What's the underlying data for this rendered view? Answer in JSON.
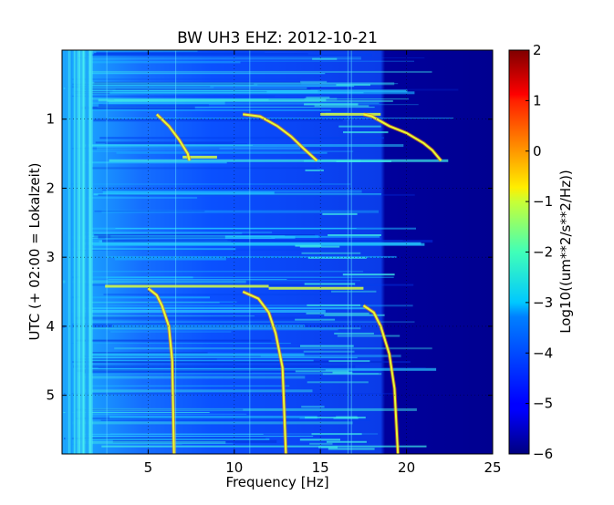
{
  "chart_data": {
    "type": "heatmap",
    "title": "BW UH3 EHZ: 2012-10-21",
    "xlabel": "Frequency [Hz]",
    "ylabel": "UTC (+ 02:00 = Lokalzeit)",
    "xlim": [
      0,
      25
    ],
    "ylim": [
      5.85,
      0
    ],
    "xticks": [
      5,
      10,
      15,
      20,
      25
    ],
    "yticks": [
      1,
      2,
      3,
      4,
      5
    ],
    "grid": true,
    "colorbar": {
      "label": "Log10((um**2/s**2/Hz))",
      "range": [
        -6,
        2
      ],
      "ticks": [
        -6,
        -5,
        -4,
        -3,
        -2,
        -1,
        0,
        1,
        2
      ],
      "colormap": "jet"
    },
    "tracks": [
      {
        "x": [
          5.5,
          6.2,
          6.8,
          7.3,
          7.4
        ],
        "y": [
          0.93,
          1.1,
          1.3,
          1.5,
          1.6
        ]
      },
      {
        "x": [
          10.5,
          11.5,
          12.5,
          13.3,
          14.0,
          14.8
        ],
        "y": [
          0.93,
          0.96,
          1.1,
          1.25,
          1.42,
          1.6
        ]
      },
      {
        "x": [
          17.5,
          18.0,
          19.0,
          20.0,
          21.0,
          21.5,
          22.0
        ],
        "y": [
          0.93,
          0.96,
          1.1,
          1.2,
          1.35,
          1.45,
          1.6
        ]
      },
      {
        "x": [
          5.0,
          5.5,
          5.8,
          6.2,
          6.4,
          6.5
        ],
        "y": [
          3.45,
          3.55,
          3.7,
          4.0,
          4.5,
          5.85
        ]
      },
      {
        "x": [
          10.5,
          11.4,
          12.0,
          12.4,
          12.8,
          13.0
        ],
        "y": [
          3.5,
          3.6,
          3.8,
          4.1,
          4.6,
          5.85
        ]
      },
      {
        "x": [
          17.5,
          18.1,
          18.5,
          19.0,
          19.3,
          19.5
        ],
        "y": [
          3.7,
          3.8,
          4.0,
          4.4,
          4.9,
          5.85
        ]
      }
    ],
    "band_segments": [
      {
        "x": [
          2.5,
          12.0
        ],
        "y": 3.42
      },
      {
        "x": [
          12.0,
          17.5
        ],
        "y": 3.45
      },
      {
        "x": [
          15.0,
          18.5
        ],
        "y": 0.93
      },
      {
        "x": [
          7.0,
          9.0
        ],
        "y": 1.55
      }
    ]
  }
}
